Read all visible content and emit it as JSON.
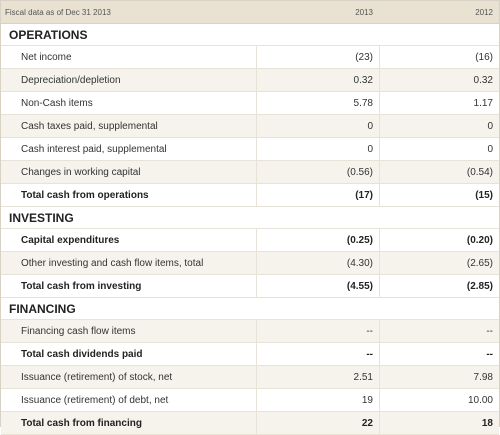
{
  "header": {
    "label": "Fiscal data as of Dec 31 2013",
    "col_2013": "2013",
    "col_2012": "2012"
  },
  "sections": {
    "operations": {
      "title": "OPERATIONS",
      "rows": [
        {
          "label": "Net income",
          "v2013": "(23)",
          "v2012": "(16)"
        },
        {
          "label": "Depreciation/depletion",
          "v2013": "0.32",
          "v2012": "0.32"
        },
        {
          "label": "Non-Cash items",
          "v2013": "5.78",
          "v2012": "1.17"
        },
        {
          "label": "Cash taxes paid, supplemental",
          "v2013": "0",
          "v2012": "0"
        },
        {
          "label": "Cash interest paid, supplemental",
          "v2013": "0",
          "v2012": "0"
        },
        {
          "label": "Changes in working capital",
          "v2013": "(0.56)",
          "v2012": "(0.54)"
        },
        {
          "label": "Total cash from operations",
          "v2013": "(17)",
          "v2012": "(15)"
        }
      ]
    },
    "investing": {
      "title": "INVESTING",
      "rows": [
        {
          "label": "Capital expenditures",
          "v2013": "(0.25)",
          "v2012": "(0.20)"
        },
        {
          "label": "Other investing and cash flow items, total",
          "v2013": "(4.30)",
          "v2012": "(2.65)"
        },
        {
          "label": "Total cash from investing",
          "v2013": "(4.55)",
          "v2012": "(2.85)"
        }
      ]
    },
    "financing": {
      "title": "FINANCING",
      "rows": [
        {
          "label": "Financing cash flow items",
          "v2013": "--",
          "v2012": "--"
        },
        {
          "label": "Total cash dividends paid",
          "v2013": "--",
          "v2012": "--"
        },
        {
          "label": "Issuance (retirement) of stock, net",
          "v2013": "2.51",
          "v2012": "7.98"
        },
        {
          "label": "Issuance (retirement) of debt, net",
          "v2013": "19",
          "v2012": "10.00"
        },
        {
          "label": "Total cash from financing",
          "v2013": "22",
          "v2012": "18"
        }
      ]
    }
  }
}
